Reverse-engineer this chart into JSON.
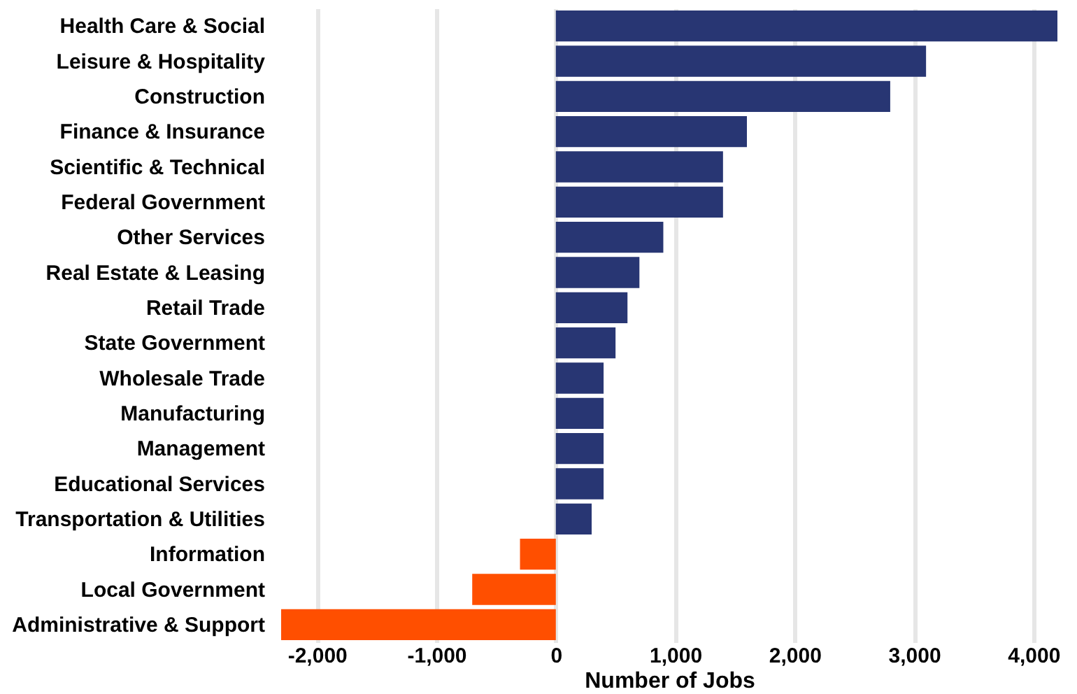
{
  "chart_data": {
    "type": "bar",
    "orientation": "horizontal",
    "xlabel": "Number of Jobs",
    "categories": [
      "Health Care & Social",
      "Leisure & Hospitality",
      "Construction",
      "Finance & Insurance",
      "Scientific & Technical",
      "Federal Government",
      "Other Services",
      "Real Estate & Leasing",
      "Retail Trade",
      "State Government",
      "Wholesale Trade",
      "Manufacturing",
      "Management",
      "Educational Services",
      "Transportation & Utilities",
      "Information",
      "Local Government",
      "Administrative & Support"
    ],
    "values": [
      4200,
      3100,
      2800,
      1600,
      1400,
      1400,
      900,
      700,
      600,
      500,
      400,
      400,
      400,
      400,
      300,
      -300,
      -700,
      -2300
    ],
    "colors": [
      "#283673",
      "#283673",
      "#283673",
      "#283673",
      "#283673",
      "#283673",
      "#283673",
      "#283673",
      "#283673",
      "#283673",
      "#283673",
      "#283673",
      "#283673",
      "#283673",
      "#283673",
      "#ff4f00",
      "#ff4f00",
      "#ff4f00"
    ],
    "xlim": [
      -2300,
      4200
    ],
    "xticks": [
      {
        "value": -2000,
        "label": "-2,000"
      },
      {
        "value": -1000,
        "label": "-1,000"
      },
      0,
      {
        "value": 1000,
        "label": "1,000"
      },
      {
        "value": 2000,
        "label": "2,000"
      },
      {
        "value": 3000,
        "label": "3,000"
      },
      {
        "value": 4000,
        "label": "4,000"
      }
    ],
    "grid": "x"
  }
}
